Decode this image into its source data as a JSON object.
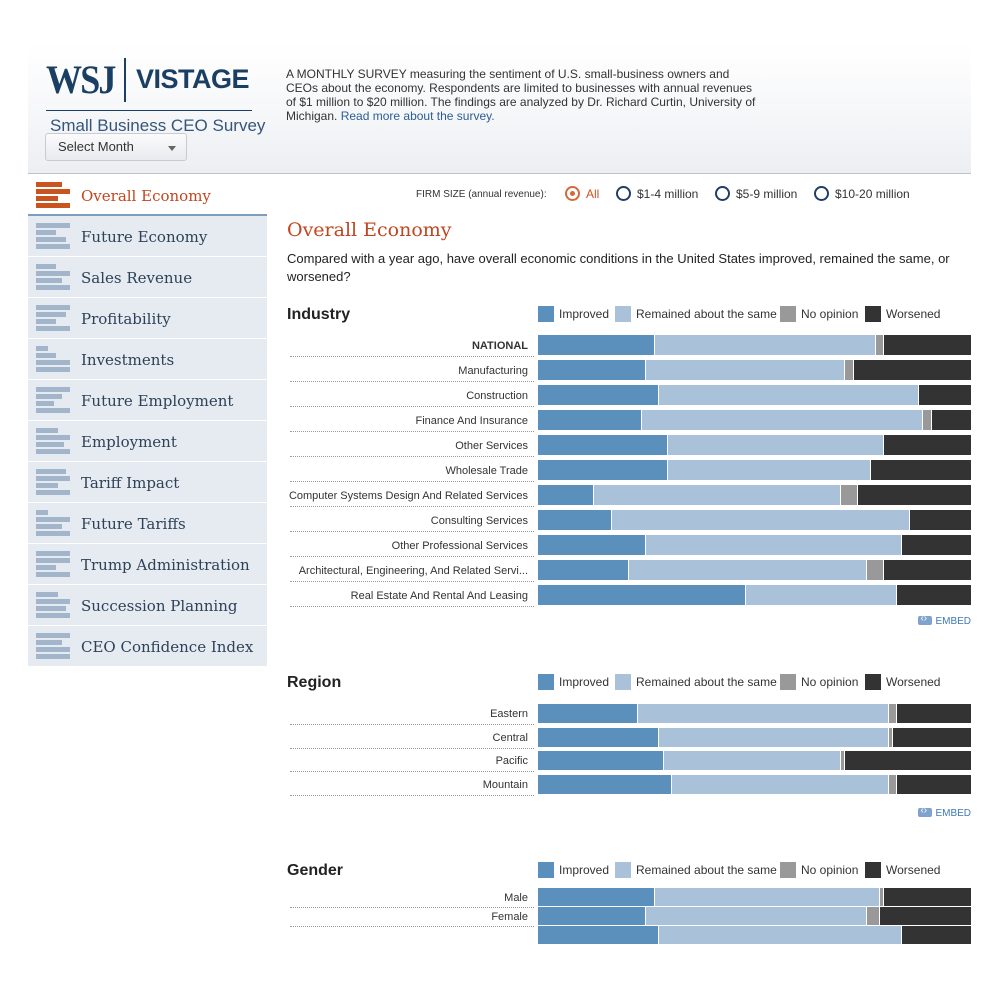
{
  "header": {
    "logo_wsj": "WSJ",
    "logo_vistage": "VISTAGE",
    "logo_sub": "Small Business CEO Survey",
    "select_month": "Select Month",
    "intro": "A MONTHLY SURVEY measuring the sentiment of U.S. small-business owners and CEOs about the economy. Respondents are limited to businesses with annual revenues of $1 million to $20 million. The findings are analyzed by Dr. Richard Curtin, University of Michigan.",
    "intro_link": "Read more about the survey."
  },
  "sidebar": {
    "items": [
      {
        "label": "Overall Economy",
        "active": true
      },
      {
        "label": "Future Economy"
      },
      {
        "label": "Sales Revenue"
      },
      {
        "label": "Profitability"
      },
      {
        "label": "Investments"
      },
      {
        "label": "Future Employment"
      },
      {
        "label": "Employment"
      },
      {
        "label": "Tariff Impact"
      },
      {
        "label": "Future Tariffs"
      },
      {
        "label": "Trump Administration"
      },
      {
        "label": "Succession Planning"
      },
      {
        "label": "CEO Confidence Index"
      }
    ]
  },
  "firm_size": {
    "label": "FIRM SIZE (annual revenue):",
    "options": [
      {
        "label": "All",
        "selected": true
      },
      {
        "label": "$1-4 million"
      },
      {
        "label": "$5-9 million"
      },
      {
        "label": "$10-20 million"
      }
    ]
  },
  "main": {
    "title": "Overall Economy",
    "question": "Compared with a year ago, have overall economic conditions in the United States improved, remained the same, or worsened?",
    "embed": "EMBED"
  },
  "colors": {
    "improved": "#5b8fbc",
    "same": "#a9c1d9",
    "no_opinion": "#999999",
    "worsened": "#333333",
    "accent": "#c0461f"
  },
  "legend": [
    "Improved",
    "Remained about the same",
    "No opinion",
    "Worsened"
  ],
  "chart_data": [
    {
      "type": "bar",
      "title": "Industry",
      "stacked": "percent",
      "orientation": "horizontal",
      "categories": [
        "NATIONAL",
        "Manufacturing",
        "Construction",
        "Finance And Insurance",
        "Other Services",
        "Wholesale Trade",
        "Computer Systems Design And Related Services",
        "Consulting Services",
        "Other Professional Services",
        "Architectural, Engineering, And Related Servi...",
        "Real Estate And Rental And Leasing"
      ],
      "series": [
        {
          "name": "Improved",
          "values": [
            27,
            25,
            28,
            24,
            30,
            30,
            13,
            17,
            25,
            21,
            48
          ]
        },
        {
          "name": "Remained about the same",
          "values": [
            51,
            46,
            60,
            65,
            50,
            47,
            57,
            69,
            59,
            55,
            35
          ]
        },
        {
          "name": "No opinion",
          "values": [
            2,
            2,
            0,
            2,
            0,
            0,
            4,
            0,
            0,
            4,
            0
          ]
        },
        {
          "name": "Worsened",
          "values": [
            20,
            27,
            12,
            9,
            20,
            23,
            26,
            14,
            16,
            20,
            17
          ]
        }
      ]
    },
    {
      "type": "bar",
      "title": "Region",
      "stacked": "percent",
      "orientation": "horizontal",
      "categories": [
        "Eastern",
        "Central",
        "Pacific",
        "Mountain"
      ],
      "series": [
        {
          "name": "Improved",
          "values": [
            23,
            28,
            29,
            31
          ]
        },
        {
          "name": "Remained about the same",
          "values": [
            58,
            53,
            41,
            50
          ]
        },
        {
          "name": "No opinion",
          "values": [
            2,
            1,
            1,
            2
          ]
        },
        {
          "name": "Worsened",
          "values": [
            17,
            18,
            29,
            17
          ]
        }
      ]
    },
    {
      "type": "bar",
      "title": "Gender",
      "stacked": "percent",
      "orientation": "horizontal",
      "categories": [
        "Male",
        "Female",
        ""
      ],
      "series": [
        {
          "name": "Improved",
          "values": [
            27,
            25,
            28
          ]
        },
        {
          "name": "Remained about the same",
          "values": [
            52,
            51,
            56
          ]
        },
        {
          "name": "No opinion",
          "values": [
            1,
            3,
            0
          ]
        },
        {
          "name": "Worsened",
          "values": [
            20,
            21,
            16
          ]
        }
      ]
    }
  ]
}
